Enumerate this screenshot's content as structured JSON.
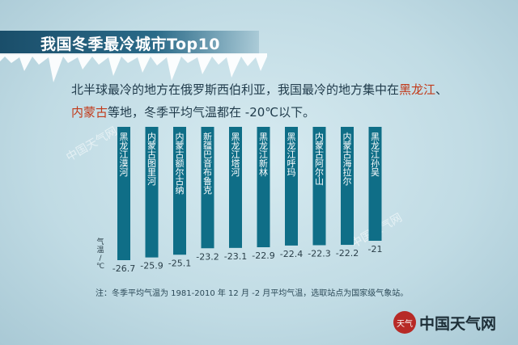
{
  "title": "我国冬季最冷城市Top10",
  "subtitle": {
    "line1_a": "北半球最冷的地方在俄罗斯西伯利亚，我国最冷的地方集中在",
    "line1_red": "黑龙江",
    "line1_b": "、",
    "line2_red": "内蒙古",
    "line2_b": "等地，冬季平均气温都在 -20℃以下。"
  },
  "watermarks": [
    "中国天气网",
    "中国天气网"
  ],
  "note": "注：冬季平均气温为 1981-2010 年 12 月 -2 月平均气温，选取站点为国家级气象站。",
  "brand": {
    "name": "中国天气网",
    "mark": "天气"
  },
  "colors": {
    "bar": "#0f6e87",
    "text": "#1f3a4a",
    "accent_red": "#c23a1a",
    "title_band": "#1a4e6a"
  },
  "chart_data": {
    "type": "bar",
    "ylabel": "气温/℃",
    "categories": [
      "黑龙江漠河",
      "内蒙古图里河",
      "内蒙古额尔古纳",
      "新疆巴音布鲁克",
      "黑龙江塔河",
      "黑龙江新林",
      "黑龙江呼玛",
      "内蒙古阿尔山",
      "内蒙古海拉尔",
      "黑龙江孙吴"
    ],
    "values": [
      -26.7,
      -25.9,
      -25.1,
      -23.2,
      -23.1,
      -22.9,
      -22.4,
      -22.3,
      -22.2,
      -21.0
    ],
    "value_labels": [
      "-26.7",
      "-25.9",
      "-25.1",
      "-23.2",
      "-23.1",
      "-22.9",
      "-22.4",
      "-22.3",
      "-22.2",
      "-21"
    ],
    "grid": false
  }
}
